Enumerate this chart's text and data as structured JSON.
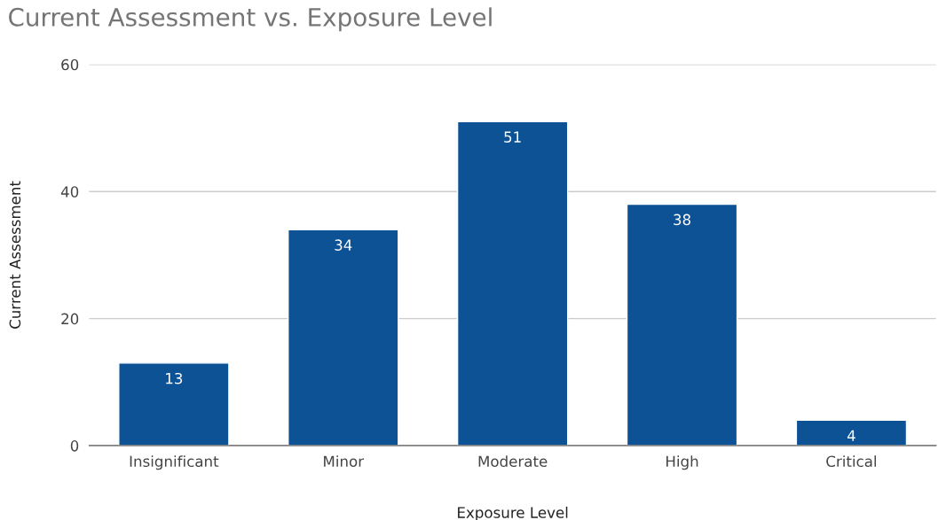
{
  "chart_data": {
    "type": "bar",
    "title": "Current Assessment vs. Exposure Level",
    "xlabel": "Exposure Level",
    "ylabel": "Current Assessment",
    "categories": [
      "Insignificant",
      "Minor",
      "Moderate",
      "High",
      "Critical"
    ],
    "values": [
      13,
      34,
      51,
      38,
      4
    ],
    "color": "#0d5295",
    "ylim": [
      0,
      60
    ],
    "yticks": [
      0,
      20,
      40,
      60
    ],
    "grid": "y",
    "data_labels": true
  }
}
